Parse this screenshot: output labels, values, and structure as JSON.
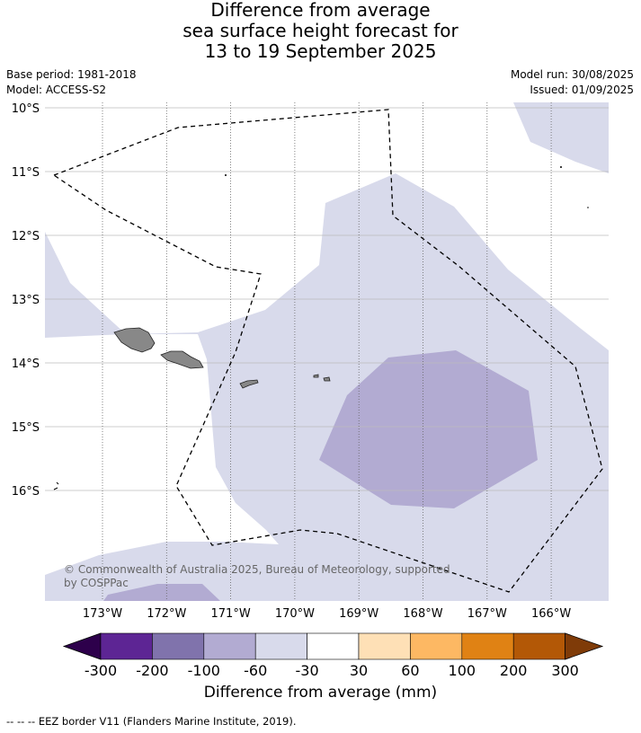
{
  "title": {
    "line1": "Difference from average",
    "line2": "sea surface height forecast for",
    "line3": "13 to 19 September 2025"
  },
  "meta": {
    "base_period": "Base period: 1981-2018",
    "model": "Model: ACCESS-S2",
    "model_run": "Model run: 30/08/2025",
    "issued": "Issued: 01/09/2025"
  },
  "map": {
    "lat_labels": [
      "10°S",
      "11°S",
      "12°S",
      "13°S",
      "14°S",
      "15°S",
      "16°S"
    ],
    "lon_labels": [
      "173°W",
      "172°W",
      "171°W",
      "170°W",
      "169°W",
      "168°W",
      "167°W",
      "166°W"
    ],
    "copyright_line1": "© Commonwealth of Australia 2025, Bureau of Meteorology, supported",
    "copyright_line2": "by COSPPac"
  },
  "colorbar": {
    "ticks": [
      "-300",
      "-200",
      "-100",
      "-60",
      "-30",
      "30",
      "60",
      "100",
      "200",
      "300"
    ],
    "under_color": "#2d004b",
    "over_color": "#7f3b08",
    "colors": [
      "#5d2594",
      "#8073ac",
      "#b2abd2",
      "#d8daeb",
      "#ffffff",
      "#fee0b6",
      "#fdb863",
      "#e08214",
      "#b35806"
    ],
    "label": "Difference from average (mm)"
  },
  "footer": "--  --  -- EEZ border V11 (Flanders Marine Institute, 2019)."
}
